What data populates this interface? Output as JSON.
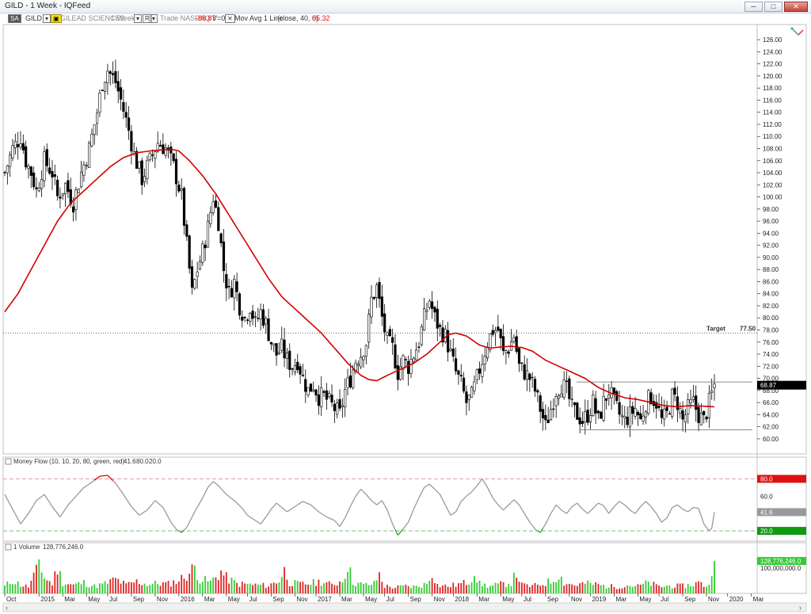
{
  "window": {
    "title": "GILD - 1 Week - IQFeed",
    "buttons": [
      "─",
      "□",
      "✕"
    ]
  },
  "toolbar": {
    "link_badge": "SA",
    "symbol": "GILD",
    "company": "GILEAD SCIENCES",
    "interval": "1 Week",
    "mode_badge": "R",
    "exchange_text": "Trade NASDAQ",
    "change": "-88.87",
    "volume_readout": "V=0",
    "indicator": "Mov Avg 1 Line",
    "indicator_params": "(close, 40, 0)",
    "indicator_value": "65.32"
  },
  "colors": {
    "ma_line": "#d40000",
    "money_flow_line": "#999999",
    "money_flow_overbought": "#d40000",
    "money_flow_oversold": "#22aa22",
    "volume_up": "#33cc33",
    "volume_down": "#dd2222",
    "price_badge": "#000000",
    "badge_80": "#dd1111",
    "badge_20": "#119911",
    "badge_mf": "#999999",
    "badge_volume": "#33cc33"
  },
  "annotations": {
    "target_label": "Target",
    "target_value": "77.50",
    "target_price": 77.5,
    "range_top": 69.4,
    "range_bottom": 61.5,
    "current_price_badge": "68.87"
  },
  "money_flow_panel": {
    "label": "Money Flow",
    "params": "(10, 10, 20, 80, green, red)",
    "value": "41.6",
    "upper": "80.0",
    "lower": "20.0",
    "upper_level": 80,
    "lower_level": 20,
    "mid_tick": "60.0",
    "badge_value": "41.6",
    "badge_upper": "80.0",
    "badge_lower": "20.0",
    "ylim": [
      10,
      95
    ]
  },
  "volume_panel": {
    "label": "1 Volume",
    "value": "128,776,246.0",
    "badge_value": "128,776,246.0",
    "tick_label": "100,000,000.0",
    "tick_level": 100000000,
    "ylim": [
      0,
      170000000
    ]
  },
  "chart_data": {
    "type": "line",
    "x_tick_labels": [
      "Oct",
      "2015",
      "Mar",
      "May",
      "Jul",
      "Sep",
      "Nov",
      "2016",
      "Mar",
      "May",
      "Jul",
      "Sep",
      "Nov",
      "2017",
      "Mar",
      "May",
      "Jul",
      "Sep",
      "Nov",
      "2018",
      "Mar",
      "May",
      "Jul",
      "Sep",
      "Nov",
      "2019",
      "Mar",
      "May",
      "Jul",
      "Sep",
      "Nov",
      "2020",
      "Mar"
    ],
    "x_tick_weeks": [
      0,
      13,
      22,
      31,
      39,
      48,
      57,
      66,
      75,
      84,
      92,
      101,
      110,
      118,
      127,
      136,
      144,
      153,
      162,
      170,
      179,
      188,
      196,
      205,
      214,
      222,
      231,
      240,
      248,
      257,
      266,
      274,
      283
    ],
    "y_ticks": [
      60,
      62,
      64,
      66,
      68,
      70,
      72,
      74,
      76,
      78,
      80,
      82,
      84,
      86,
      88,
      90,
      92,
      94,
      96,
      98,
      100,
      102,
      104,
      106,
      108,
      110,
      112,
      114,
      116,
      118,
      120,
      122,
      124,
      126
    ],
    "y_tick_labels": [
      "60.00",
      "62.00",
      "64.00",
      "66.00",
      "68.00",
      "70.00",
      "72.00",
      "74.00",
      "76.00",
      "78.00",
      "80.00",
      "82.00",
      "84.00",
      "86.00",
      "88.00",
      "90.00",
      "92.00",
      "94.00",
      "96.00",
      "98.00",
      "100.00",
      "102.00",
      "104.00",
      "106.00",
      "108.00",
      "110.00",
      "112.00",
      "114.00",
      "116.00",
      "118.00",
      "120.00",
      "122.00",
      "124.00",
      "126.00"
    ],
    "ylim": [
      57.5,
      128.5
    ],
    "weeks": 285,
    "price_anchors": [
      [
        0,
        104
      ],
      [
        3,
        108
      ],
      [
        6,
        110
      ],
      [
        8,
        106
      ],
      [
        10,
        104
      ],
      [
        12,
        101
      ],
      [
        15,
        106
      ],
      [
        18,
        104
      ],
      [
        20,
        100
      ],
      [
        23,
        102
      ],
      [
        26,
        99
      ],
      [
        29,
        104
      ],
      [
        32,
        108
      ],
      [
        35,
        114
      ],
      [
        37,
        119
      ],
      [
        39,
        121
      ],
      [
        42,
        119
      ],
      [
        44,
        116
      ],
      [
        47,
        111
      ],
      [
        49,
        107
      ],
      [
        52,
        103
      ],
      [
        55,
        106
      ],
      [
        58,
        109
      ],
      [
        61,
        108
      ],
      [
        64,
        105
      ],
      [
        67,
        100
      ],
      [
        69,
        92
      ],
      [
        71,
        84
      ],
      [
        73,
        88
      ],
      [
        75,
        91
      ],
      [
        77,
        95
      ],
      [
        79,
        100
      ],
      [
        81,
        96
      ],
      [
        83,
        88
      ],
      [
        85,
        84
      ],
      [
        87,
        86
      ],
      [
        89,
        82
      ],
      [
        91,
        80
      ],
      [
        93,
        82
      ],
      [
        95,
        79
      ],
      [
        97,
        81
      ],
      [
        99,
        79
      ],
      [
        101,
        76
      ],
      [
        103,
        74
      ],
      [
        105,
        75
      ],
      [
        107,
        73
      ],
      [
        109,
        72
      ],
      [
        111,
        73
      ],
      [
        113,
        70
      ],
      [
        115,
        68
      ],
      [
        117,
        69
      ],
      [
        119,
        67
      ],
      [
        121,
        67
      ],
      [
        123,
        66
      ],
      [
        125,
        65
      ],
      [
        127,
        64
      ],
      [
        129,
        68
      ],
      [
        131,
        70
      ],
      [
        133,
        73
      ],
      [
        135,
        74
      ],
      [
        137,
        76
      ],
      [
        139,
        83
      ],
      [
        141,
        85
      ],
      [
        143,
        80
      ],
      [
        145,
        76
      ],
      [
        147,
        75
      ],
      [
        149,
        71
      ],
      [
        151,
        73
      ],
      [
        153,
        72
      ],
      [
        155,
        74
      ],
      [
        157,
        76
      ],
      [
        159,
        80
      ],
      [
        161,
        83
      ],
      [
        163,
        80
      ],
      [
        165,
        78
      ],
      [
        167,
        77
      ],
      [
        169,
        74
      ],
      [
        171,
        71
      ],
      [
        173,
        69
      ],
      [
        175,
        66
      ],
      [
        177,
        67
      ],
      [
        179,
        70
      ],
      [
        181,
        73
      ],
      [
        183,
        76
      ],
      [
        185,
        78
      ],
      [
        187,
        78
      ],
      [
        189,
        74
      ],
      [
        191,
        75
      ],
      [
        193,
        77
      ],
      [
        195,
        72
      ],
      [
        197,
        71
      ],
      [
        199,
        70
      ],
      [
        201,
        68
      ],
      [
        203,
        65
      ],
      [
        205,
        62
      ],
      [
        207,
        65
      ],
      [
        209,
        68
      ],
      [
        211,
        69
      ],
      [
        213,
        68
      ],
      [
        215,
        65
      ],
      [
        217,
        64
      ],
      [
        219,
        63
      ],
      [
        221,
        64
      ],
      [
        223,
        66
      ],
      [
        225,
        63
      ],
      [
        227,
        66
      ],
      [
        229,
        68
      ],
      [
        231,
        66
      ],
      [
        233,
        64
      ],
      [
        235,
        63
      ],
      [
        237,
        64
      ],
      [
        239,
        65
      ],
      [
        241,
        63
      ],
      [
        243,
        66
      ],
      [
        245,
        67
      ],
      [
        247,
        66
      ],
      [
        249,
        63
      ],
      [
        251,
        64
      ],
      [
        253,
        67
      ],
      [
        255,
        66
      ],
      [
        257,
        63
      ],
      [
        259,
        65
      ],
      [
        261,
        66
      ],
      [
        263,
        64
      ],
      [
        265,
        63
      ],
      [
        267,
        66
      ],
      [
        269,
        68.9
      ]
    ],
    "ma_anchors": [
      [
        0,
        81
      ],
      [
        5,
        84
      ],
      [
        10,
        88
      ],
      [
        15,
        92
      ],
      [
        20,
        96
      ],
      [
        25,
        99
      ],
      [
        30,
        101
      ],
      [
        35,
        103
      ],
      [
        40,
        105
      ],
      [
        45,
        106.5
      ],
      [
        50,
        107.3
      ],
      [
        55,
        107.6
      ],
      [
        60,
        107.8
      ],
      [
        63,
        107.9
      ],
      [
        66,
        107.6
      ],
      [
        70,
        106
      ],
      [
        75,
        103.5
      ],
      [
        80,
        100.5
      ],
      [
        85,
        97
      ],
      [
        90,
        93.5
      ],
      [
        95,
        90
      ],
      [
        100,
        86.5
      ],
      [
        105,
        83.5
      ],
      [
        110,
        81.5
      ],
      [
        115,
        79.5
      ],
      [
        120,
        77.5
      ],
      [
        125,
        75
      ],
      [
        130,
        72.5
      ],
      [
        135,
        70.5
      ],
      [
        138,
        69.8
      ],
      [
        141,
        69.6
      ],
      [
        145,
        70.5
      ],
      [
        150,
        71.5
      ],
      [
        155,
        72.5
      ],
      [
        160,
        74
      ],
      [
        165,
        76
      ],
      [
        168,
        77.2
      ],
      [
        171,
        77.5
      ],
      [
        175,
        77
      ],
      [
        180,
        75.5
      ],
      [
        184,
        75
      ],
      [
        188,
        75.2
      ],
      [
        192,
        75.3
      ],
      [
        196,
        75.1
      ],
      [
        200,
        74.5
      ],
      [
        205,
        73
      ],
      [
        210,
        72
      ],
      [
        215,
        71
      ],
      [
        220,
        70
      ],
      [
        225,
        68.5
      ],
      [
        230,
        67.5
      ],
      [
        235,
        66.8
      ],
      [
        240,
        66.5
      ],
      [
        245,
        66
      ],
      [
        250,
        65.5
      ],
      [
        255,
        65.3
      ],
      [
        260,
        65.5
      ],
      [
        265,
        65.4
      ],
      [
        269,
        65.3
      ]
    ],
    "money_flow_anchors": [
      [
        0,
        62
      ],
      [
        3,
        45
      ],
      [
        6,
        28
      ],
      [
        9,
        40
      ],
      [
        12,
        55
      ],
      [
        15,
        62
      ],
      [
        18,
        48
      ],
      [
        21,
        36
      ],
      [
        24,
        50
      ],
      [
        27,
        60
      ],
      [
        30,
        70
      ],
      [
        33,
        76
      ],
      [
        36,
        83
      ],
      [
        39,
        84
      ],
      [
        42,
        75
      ],
      [
        45,
        62
      ],
      [
        48,
        48
      ],
      [
        51,
        38
      ],
      [
        54,
        44
      ],
      [
        57,
        55
      ],
      [
        60,
        47
      ],
      [
        63,
        30
      ],
      [
        65,
        22
      ],
      [
        67,
        18
      ],
      [
        69,
        24
      ],
      [
        72,
        42
      ],
      [
        75,
        58
      ],
      [
        77,
        70
      ],
      [
        79,
        77
      ],
      [
        81,
        72
      ],
      [
        84,
        62
      ],
      [
        87,
        55
      ],
      [
        90,
        46
      ],
      [
        92,
        38
      ],
      [
        95,
        32
      ],
      [
        97,
        28
      ],
      [
        99,
        36
      ],
      [
        101,
        45
      ],
      [
        103,
        52
      ],
      [
        105,
        47
      ],
      [
        107,
        42
      ],
      [
        110,
        48
      ],
      [
        113,
        54
      ],
      [
        116,
        50
      ],
      [
        119,
        42
      ],
      [
        122,
        36
      ],
      [
        125,
        32
      ],
      [
        127,
        25
      ],
      [
        129,
        35
      ],
      [
        131,
        48
      ],
      [
        133,
        60
      ],
      [
        135,
        68
      ],
      [
        137,
        62
      ],
      [
        139,
        55
      ],
      [
        141,
        50
      ],
      [
        143,
        55
      ],
      [
        145,
        44
      ],
      [
        147,
        28
      ],
      [
        149,
        15
      ],
      [
        151,
        22
      ],
      [
        153,
        30
      ],
      [
        155,
        45
      ],
      [
        157,
        58
      ],
      [
        159,
        70
      ],
      [
        161,
        74
      ],
      [
        163,
        68
      ],
      [
        165,
        62
      ],
      [
        167,
        50
      ],
      [
        169,
        38
      ],
      [
        171,
        42
      ],
      [
        173,
        54
      ],
      [
        175,
        60
      ],
      [
        177,
        65
      ],
      [
        179,
        72
      ],
      [
        181,
        80
      ],
      [
        183,
        70
      ],
      [
        185,
        58
      ],
      [
        187,
        50
      ],
      [
        189,
        44
      ],
      [
        191,
        50
      ],
      [
        193,
        56
      ],
      [
        195,
        50
      ],
      [
        197,
        40
      ],
      [
        199,
        30
      ],
      [
        201,
        22
      ],
      [
        203,
        18
      ],
      [
        205,
        28
      ],
      [
        207,
        40
      ],
      [
        209,
        50
      ],
      [
        211,
        44
      ],
      [
        213,
        40
      ],
      [
        215,
        48
      ],
      [
        217,
        52
      ],
      [
        219,
        45
      ],
      [
        221,
        40
      ],
      [
        223,
        46
      ],
      [
        225,
        52
      ],
      [
        227,
        49
      ],
      [
        229,
        40
      ],
      [
        231,
        48
      ],
      [
        233,
        54
      ],
      [
        235,
        50
      ],
      [
        237,
        44
      ],
      [
        239,
        40
      ],
      [
        241,
        48
      ],
      [
        243,
        54
      ],
      [
        245,
        48
      ],
      [
        247,
        40
      ],
      [
        249,
        30
      ],
      [
        251,
        35
      ],
      [
        253,
        47
      ],
      [
        255,
        50
      ],
      [
        257,
        45
      ],
      [
        259,
        42
      ],
      [
        261,
        47
      ],
      [
        263,
        46
      ],
      [
        265,
        28
      ],
      [
        267,
        20
      ],
      [
        268,
        23
      ],
      [
        269,
        41.6
      ]
    ],
    "volume_anchors": [
      [
        0,
        30
      ],
      [
        3,
        55
      ],
      [
        6,
        35
      ],
      [
        9,
        28
      ],
      [
        12,
        90
      ],
      [
        13,
        140
      ],
      [
        15,
        65
      ],
      [
        18,
        40
      ],
      [
        20,
        110
      ],
      [
        22,
        45
      ],
      [
        26,
        35
      ],
      [
        30,
        45
      ],
      [
        34,
        30
      ],
      [
        38,
        40
      ],
      [
        42,
        60
      ],
      [
        46,
        35
      ],
      [
        50,
        50
      ],
      [
        54,
        38
      ],
      [
        58,
        42
      ],
      [
        62,
        40
      ],
      [
        66,
        55
      ],
      [
        70,
        85
      ],
      [
        72,
        110
      ],
      [
        74,
        60
      ],
      [
        78,
        48
      ],
      [
        82,
        90
      ],
      [
        84,
        65
      ],
      [
        88,
        40
      ],
      [
        92,
        38
      ],
      [
        96,
        35
      ],
      [
        100,
        32
      ],
      [
        104,
        55
      ],
      [
        106,
        95
      ],
      [
        108,
        45
      ],
      [
        112,
        38
      ],
      [
        116,
        42
      ],
      [
        120,
        50
      ],
      [
        124,
        35
      ],
      [
        128,
        55
      ],
      [
        130,
        120
      ],
      [
        132,
        48
      ],
      [
        136,
        35
      ],
      [
        140,
        40
      ],
      [
        142,
        80
      ],
      [
        144,
        30
      ],
      [
        148,
        25
      ],
      [
        152,
        30
      ],
      [
        156,
        28
      ],
      [
        160,
        40
      ],
      [
        162,
        90
      ],
      [
        164,
        35
      ],
      [
        168,
        30
      ],
      [
        172,
        38
      ],
      [
        176,
        48
      ],
      [
        178,
        90
      ],
      [
        180,
        40
      ],
      [
        184,
        30
      ],
      [
        188,
        38
      ],
      [
        192,
        45
      ],
      [
        194,
        85
      ],
      [
        196,
        35
      ],
      [
        200,
        30
      ],
      [
        204,
        40
      ],
      [
        208,
        55
      ],
      [
        210,
        82
      ],
      [
        212,
        45
      ],
      [
        216,
        35
      ],
      [
        220,
        42
      ],
      [
        224,
        38
      ],
      [
        228,
        30
      ],
      [
        232,
        28
      ],
      [
        236,
        35
      ],
      [
        240,
        30
      ],
      [
        244,
        45
      ],
      [
        248,
        28
      ],
      [
        252,
        32
      ],
      [
        256,
        30
      ],
      [
        260,
        35
      ],
      [
        263,
        45
      ],
      [
        266,
        30
      ],
      [
        268,
        60
      ],
      [
        269,
        128.8
      ]
    ]
  }
}
